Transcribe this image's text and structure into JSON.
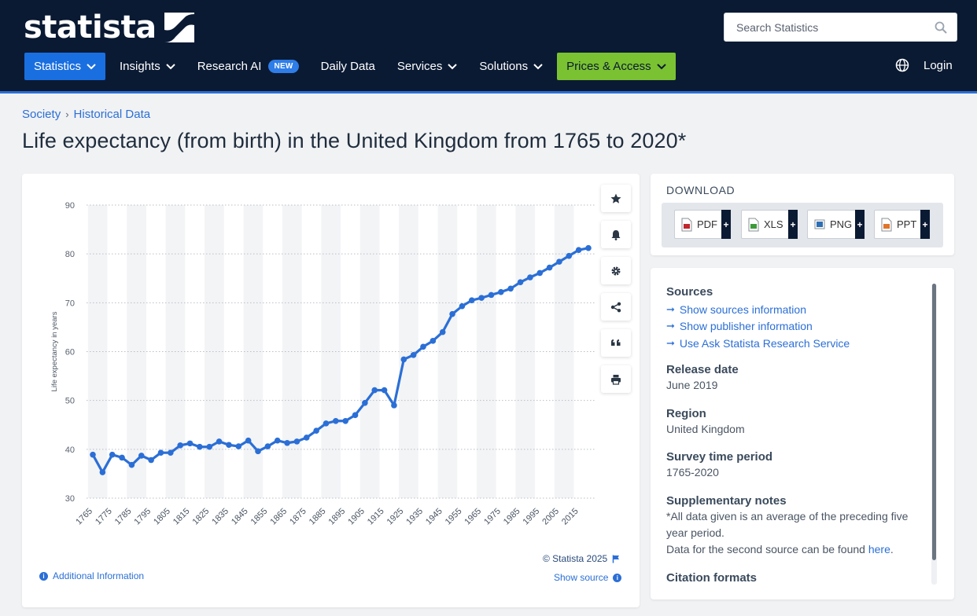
{
  "header": {
    "logo_text": "statista",
    "search_placeholder": "Search Statistics",
    "nav": [
      {
        "label": "Statistics"
      },
      {
        "label": "Insights"
      },
      {
        "label": "Research AI",
        "badge": "NEW"
      },
      {
        "label": "Daily Data"
      },
      {
        "label": "Services"
      },
      {
        "label": "Solutions"
      },
      {
        "label": "Prices & Access"
      }
    ],
    "login_label": "Login",
    "brand_color": "#0b1a33",
    "accent_color": "#1a6fe0",
    "cta_color": "#7ac231"
  },
  "breadcrumb": [
    "Society",
    "Historical Data"
  ],
  "page_title": "Life expectancy (from birth) in the United Kingdom from 1765 to 2020*",
  "chart": {
    "tools": [
      "star-icon",
      "bell-icon",
      "gear-icon",
      "share-icon",
      "quote-icon",
      "print-icon"
    ],
    "copyright": "© Statista 2025",
    "additional_info": "Additional Information",
    "show_source": "Show source"
  },
  "chart_data": {
    "type": "line",
    "title": "",
    "xlabel": "",
    "ylabel": "Life expectancy in years",
    "ylim": [
      30,
      90
    ],
    "yticks": [
      30,
      40,
      50,
      60,
      70,
      80,
      90
    ],
    "xtick_labels": [
      "1765",
      "1775",
      "1785",
      "1795",
      "1805",
      "1815",
      "1825",
      "1835",
      "1845",
      "1855",
      "1865",
      "1875",
      "1885",
      "1895",
      "1905",
      "1915",
      "1925",
      "1935",
      "1945",
      "1955",
      "1965",
      "1975",
      "1985",
      "1995",
      "2005",
      "2015"
    ],
    "grid": true,
    "series_color": "#2b6fd6",
    "x": [
      1765,
      1770,
      1775,
      1780,
      1785,
      1790,
      1795,
      1800,
      1805,
      1810,
      1815,
      1820,
      1825,
      1830,
      1835,
      1840,
      1845,
      1850,
      1855,
      1860,
      1865,
      1870,
      1875,
      1880,
      1885,
      1890,
      1895,
      1900,
      1905,
      1910,
      1915,
      1920,
      1925,
      1930,
      1935,
      1940,
      1945,
      1950,
      1955,
      1960,
      1965,
      1970,
      1975,
      1980,
      1985,
      1990,
      1995,
      2000,
      2005,
      2010,
      2015,
      2020
    ],
    "values": [
      38.9,
      35.3,
      38.9,
      38.3,
      36.8,
      38.7,
      37.8,
      39.3,
      39.3,
      40.8,
      41.2,
      40.5,
      40.5,
      41.6,
      40.9,
      40.6,
      41.8,
      39.6,
      40.6,
      41.8,
      41.3,
      41.6,
      42.4,
      43.8,
      45.3,
      45.8,
      45.8,
      47.0,
      49.5,
      52.1,
      52.1,
      49.0,
      58.4,
      59.3,
      61.0,
      62.2,
      64.0,
      67.7,
      69.3,
      70.5,
      71.0,
      71.6,
      72.2,
      72.9,
      74.2,
      75.2,
      76.1,
      77.2,
      78.4,
      79.6,
      80.8,
      81.2
    ]
  },
  "download": {
    "title": "DOWNLOAD",
    "buttons": [
      {
        "label": "PDF",
        "color": "#c0282d"
      },
      {
        "label": "XLS",
        "color": "#3d9a3a"
      },
      {
        "label": "PNG",
        "color": "#2d6fb5"
      },
      {
        "label": "PPT",
        "color": "#e0742a"
      }
    ]
  },
  "info": {
    "sources_heading": "Sources",
    "source_links": [
      "Show sources information",
      "Show publisher information",
      "Use Ask Statista Research Service"
    ],
    "release_heading": "Release date",
    "release_value": "June 2019",
    "region_heading": "Region",
    "region_value": "United Kingdom",
    "survey_heading": "Survey time period",
    "survey_value": "1765-2020",
    "notes_heading": "Supplementary notes",
    "notes_line1": "*All data given is an average of the preceding five year period.",
    "notes_line2": "Data for the second source can be found ",
    "notes_link": "here",
    "notes_end": ".",
    "citation_heading": "Citation formats"
  }
}
